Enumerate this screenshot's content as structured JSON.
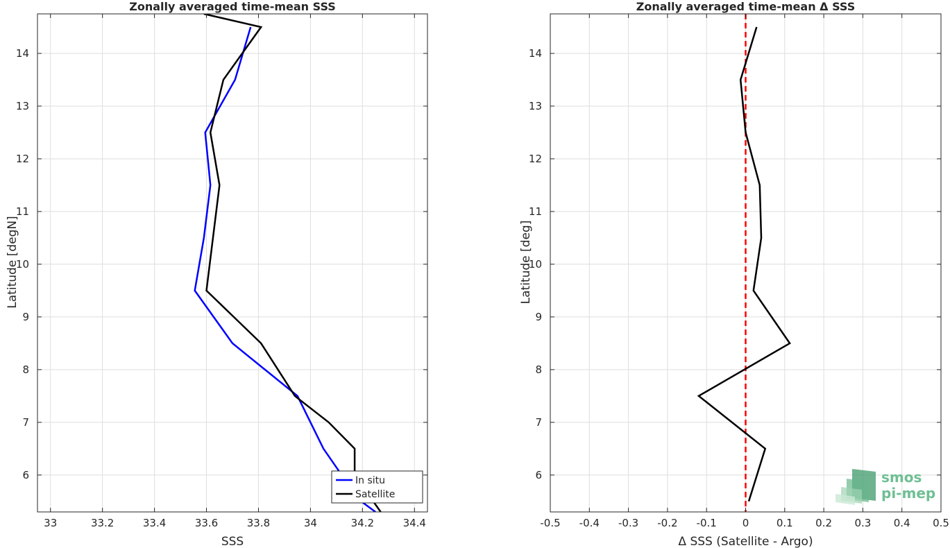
{
  "chart_data": [
    {
      "type": "line",
      "title": "Zonally averaged time-mean SSS",
      "xlabel": "SSS",
      "ylabel": "Latitude [degN]",
      "xlim": [
        32.95,
        34.45
      ],
      "ylim": [
        5.3,
        14.75
      ],
      "xticks": [
        33,
        33.2,
        33.4,
        33.6,
        33.8,
        34,
        34.2,
        34.4
      ],
      "xtick_labels": [
        "33",
        "33.2",
        "33.4",
        "33.6",
        "33.8",
        "34",
        "34.2",
        "34.4"
      ],
      "yticks": [
        6,
        7,
        8,
        9,
        10,
        11,
        12,
        13,
        14
      ],
      "ytick_labels": [
        "6",
        "7",
        "8",
        "9",
        "10",
        "11",
        "12",
        "13",
        "14"
      ],
      "grid": true,
      "legend_position": "bottom-right",
      "series": [
        {
          "name": "In situ",
          "color": "#0000ff",
          "points": [
            [
              34.25,
              5.3
            ],
            [
              34.14,
              5.7
            ],
            [
              34.12,
              6.0
            ],
            [
              34.05,
              6.5
            ],
            [
              33.95,
              7.5
            ],
            [
              33.7,
              8.5
            ],
            [
              33.555,
              9.5
            ],
            [
              33.59,
              10.5
            ],
            [
              33.615,
              11.5
            ],
            [
              33.595,
              12.5
            ],
            [
              33.71,
              13.5
            ],
            [
              33.77,
              14.5
            ]
          ]
        },
        {
          "name": "Satellite",
          "color": "#000000",
          "points": [
            [
              34.27,
              5.3
            ],
            [
              34.17,
              6.0
            ],
            [
              34.17,
              6.5
            ],
            [
              34.07,
              7.0
            ],
            [
              33.94,
              7.5
            ],
            [
              33.81,
              8.5
            ],
            [
              33.6,
              9.5
            ],
            [
              33.65,
              11.5
            ],
            [
              33.615,
              12.5
            ],
            [
              33.665,
              13.5
            ],
            [
              33.81,
              14.5
            ],
            [
              33.59,
              14.75
            ]
          ]
        }
      ]
    },
    {
      "type": "line",
      "title": "Zonally averaged time-mean Δ SSS",
      "xlabel": "Δ SSS (Satellite - Argo)",
      "ylabel": "Latitude [deg]",
      "xlim": [
        -0.5,
        0.5
      ],
      "ylim": [
        5.3,
        14.75
      ],
      "xticks": [
        -0.5,
        -0.4,
        -0.3,
        -0.2,
        -0.1,
        0,
        0.1,
        0.2,
        0.3,
        0.4,
        0.5
      ],
      "xtick_labels": [
        "-0.5",
        "-0.4",
        "-0.3",
        "-0.2",
        "-0.1",
        "0",
        "0.1",
        "0.2",
        "0.3",
        "0.4",
        "0.5"
      ],
      "yticks": [
        6,
        7,
        8,
        9,
        10,
        11,
        12,
        13,
        14
      ],
      "ytick_labels": [
        "6",
        "7",
        "8",
        "9",
        "10",
        "11",
        "12",
        "13",
        "14"
      ],
      "grid": true,
      "reference_line": {
        "x": 0,
        "color": "#ff0000",
        "style": "dashed"
      },
      "series": [
        {
          "color": "#000000",
          "points": [
            [
              0.008,
              5.5
            ],
            [
              0.05,
              6.5
            ],
            [
              -0.12,
              7.5
            ],
            [
              0.113,
              8.5
            ],
            [
              0.02,
              9.5
            ],
            [
              0.04,
              10.5
            ],
            [
              0.036,
              11.5
            ],
            [
              0.0,
              12.5
            ],
            [
              -0.013,
              13.5
            ],
            [
              0.028,
              14.5
            ]
          ]
        }
      ]
    }
  ],
  "logo": {
    "line1": "smos",
    "line2": "pi-mep"
  }
}
